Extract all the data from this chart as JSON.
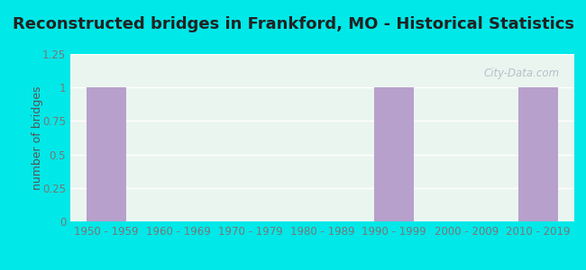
{
  "title": "Reconstructed bridges in Frankford, MO - Historical Statistics",
  "categories": [
    "1950 - 1959",
    "1960 - 1969",
    "1970 - 1979",
    "1980 - 1989",
    "1990 - 1999",
    "2000 - 2009",
    "2010 - 2019"
  ],
  "values": [
    1,
    0,
    0,
    0,
    1,
    0,
    1
  ],
  "bar_color": "#b8a0cc",
  "background_outer": "#00e8e8",
  "background_inner_top": "#eaf5f0",
  "background_inner_bottom": "#dff0e8",
  "ylim": [
    0,
    1.25
  ],
  "yticks": [
    0,
    0.25,
    0.5,
    0.75,
    1,
    1.25
  ],
  "ylabel": "number of bridges",
  "title_fontsize": 13,
  "ylabel_fontsize": 9,
  "tick_fontsize": 8.5,
  "tick_color": "#777777",
  "title_color": "#222222",
  "ylabel_color": "#555555",
  "watermark": "City-Data.com"
}
